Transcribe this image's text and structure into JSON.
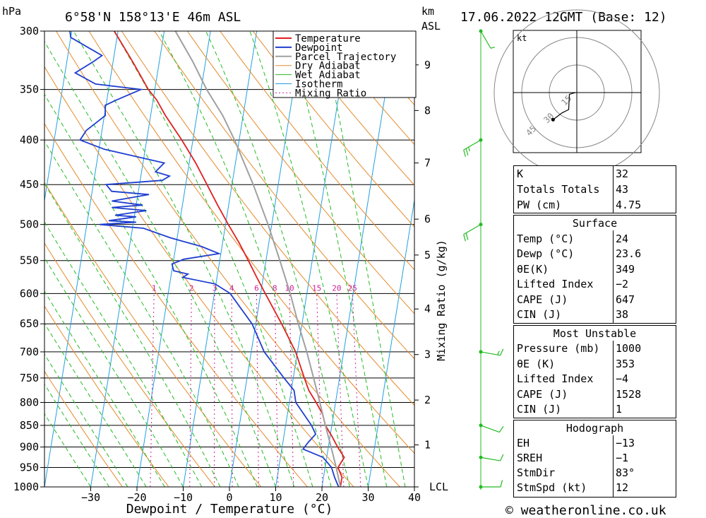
{
  "header": {
    "pressure_unit": "hPa",
    "location": "6°58'N  158°13'E  46m  ASL",
    "km_label": "km",
    "asl_label": "ASL",
    "datetime": "17.06.2022  12GMT  (Base: 12)"
  },
  "footer": {
    "copyright": "© weatheronline.co.uk"
  },
  "colors": {
    "temperature": "#e02020",
    "dewpoint": "#1f3fd0",
    "parcel": "#a0a0a0",
    "dry_adiabat": "#e58a2a",
    "wet_adiabat": "#22bb22",
    "isotherm": "#22a0e0",
    "mixing_ratio": "#cc2299",
    "wind": "#22bb22"
  },
  "chart_data": {
    "type": "line",
    "title": "6°58'N  158°13'E  46m  ASL",
    "xlabel": "Dewpoint / Temperature (°C)",
    "ylabel": "hPa",
    "right_label": "Mixing Ratio (g/kg)",
    "xlim": [
      -40,
      40
    ],
    "ylim": [
      1000,
      300
    ],
    "x_ticks": [
      -30,
      -20,
      -10,
      0,
      10,
      20,
      30,
      40
    ],
    "pressure_ticks": [
      300,
      350,
      400,
      450,
      500,
      550,
      600,
      650,
      700,
      750,
      800,
      850,
      900,
      950,
      1000
    ],
    "km_ticks": [
      {
        "label": "1",
        "p": 895
      },
      {
        "label": "2",
        "p": 795
      },
      {
        "label": "3",
        "p": 705
      },
      {
        "label": "4",
        "p": 625
      },
      {
        "label": "5",
        "p": 542
      },
      {
        "label": "6",
        "p": 493
      },
      {
        "label": "7",
        "p": 425
      },
      {
        "label": "8",
        "p": 370
      },
      {
        "label": "9",
        "p": 328
      },
      {
        "label": "LCL",
        "p": 1000
      }
    ],
    "mixing_ratio_labels": [
      1,
      2,
      3,
      4,
      6,
      8,
      10,
      15,
      20,
      25
    ],
    "grid": true,
    "legend_position": "top-right",
    "legend": [
      "Temperature",
      "Dewpoint",
      "Parcel Trajectory",
      "Dry Adiabat",
      "Wet Adiabat",
      "Isotherm",
      "Mixing Ratio"
    ],
    "series": [
      {
        "name": "Temperature",
        "points": [
          [
            1000,
            24.0
          ],
          [
            975,
            24.0
          ],
          [
            950,
            22.8
          ],
          [
            925,
            23.8
          ],
          [
            900,
            22.0
          ],
          [
            875,
            20.4
          ],
          [
            850,
            18.6
          ],
          [
            825,
            17.6
          ],
          [
            800,
            15.8
          ],
          [
            775,
            13.8
          ],
          [
            750,
            12.4
          ],
          [
            700,
            9.6
          ],
          [
            650,
            5.6
          ],
          [
            600,
            1.0
          ],
          [
            575,
            -1.4
          ],
          [
            550,
            -3.8
          ],
          [
            525,
            -6.4
          ],
          [
            500,
            -9.4
          ],
          [
            475,
            -12.4
          ],
          [
            450,
            -15.4
          ],
          [
            425,
            -18.6
          ],
          [
            400,
            -22.4
          ],
          [
            375,
            -26.8
          ],
          [
            360,
            -29.2
          ],
          [
            350,
            -31.4
          ],
          [
            325,
            -35.8
          ],
          [
            300,
            -40.8
          ]
        ]
      },
      {
        "name": "Dewpoint",
        "points": [
          [
            1000,
            23.6
          ],
          [
            975,
            22.4
          ],
          [
            950,
            21.4
          ],
          [
            925,
            19.2
          ],
          [
            905,
            14.6
          ],
          [
            890,
            15.4
          ],
          [
            870,
            16.8
          ],
          [
            850,
            15.6
          ],
          [
            800,
            11.4
          ],
          [
            775,
            10.6
          ],
          [
            750,
            8.0
          ],
          [
            700,
            2.8
          ],
          [
            650,
            -0.8
          ],
          [
            600,
            -6.6
          ],
          [
            585,
            -10.2
          ],
          [
            575,
            -17.4
          ],
          [
            570,
            -16.4
          ],
          [
            565,
            -19.6
          ],
          [
            555,
            -20.2
          ],
          [
            548,
            -17.8
          ],
          [
            540,
            -10.4
          ],
          [
            530,
            -14.4
          ],
          [
            518,
            -21.4
          ],
          [
            505,
            -27.6
          ],
          [
            500,
            -37.2
          ],
          [
            497,
            -29.4
          ],
          [
            495,
            -35.4
          ],
          [
            490,
            -29.6
          ],
          [
            488,
            -34.2
          ],
          [
            482,
            -27.6
          ],
          [
            478,
            -35.2
          ],
          [
            475,
            -28.6
          ],
          [
            470,
            -35.4
          ],
          [
            462,
            -27.6
          ],
          [
            458,
            -35.8
          ],
          [
            450,
            -37.2
          ],
          [
            445,
            -25.2
          ],
          [
            440,
            -23.8
          ],
          [
            435,
            -27.0
          ],
          [
            425,
            -25.4
          ],
          [
            410,
            -38.8
          ],
          [
            400,
            -44.4
          ],
          [
            390,
            -43.4
          ],
          [
            375,
            -39.8
          ],
          [
            365,
            -40.2
          ],
          [
            360,
            -38.0
          ],
          [
            350,
            -33.0
          ],
          [
            345,
            -43.0
          ],
          [
            335,
            -47.8
          ],
          [
            325,
            -44.2
          ],
          [
            320,
            -42.6
          ],
          [
            305,
            -50.0
          ],
          [
            300,
            -50.4
          ]
        ]
      },
      {
        "name": "Parcel Trajectory",
        "points": [
          [
            1000,
            24.0
          ],
          [
            950,
            22.4
          ],
          [
            900,
            20.6
          ],
          [
            850,
            18.6
          ],
          [
            800,
            16.6
          ],
          [
            750,
            14.4
          ],
          [
            700,
            12.0
          ],
          [
            650,
            9.2
          ],
          [
            600,
            6.4
          ],
          [
            550,
            3.0
          ],
          [
            500,
            -0.8
          ],
          [
            450,
            -5.4
          ],
          [
            400,
            -11.0
          ],
          [
            375,
            -14.4
          ],
          [
            350,
            -18.8
          ],
          [
            325,
            -22.8
          ],
          [
            300,
            -27.6
          ]
        ]
      }
    ],
    "wind_barbs": [
      {
        "p": 1000,
        "dir": 90,
        "kt": 10
      },
      {
        "p": 925,
        "dir": 100,
        "kt": 10
      },
      {
        "p": 850,
        "dir": 110,
        "kt": 10
      },
      {
        "p": 700,
        "dir": 100,
        "kt": 15
      },
      {
        "p": 500,
        "dir": 240,
        "kt": 20
      },
      {
        "p": 400,
        "dir": 240,
        "kt": 25
      },
      {
        "p": 300,
        "dir": 150,
        "kt": 5
      }
    ],
    "hodograph": {
      "unit_label": "kt",
      "ring_labels": [
        "15",
        "30",
        "45"
      ],
      "points_uv": [
        [
          -1,
          0
        ],
        [
          -3,
          -0.5
        ],
        [
          -5,
          -1
        ],
        [
          -5.5,
          -10
        ],
        [
          -10,
          -12
        ],
        [
          -16,
          -16
        ]
      ]
    }
  },
  "indices": {
    "general": [
      {
        "label": "K",
        "value": "32"
      },
      {
        "label": "Totals Totals",
        "value": "43"
      },
      {
        "label": "PW (cm)",
        "value": "4.75"
      }
    ],
    "surface": {
      "title": "Surface",
      "rows": [
        {
          "label": "Temp (°C)",
          "value": "24"
        },
        {
          "label": "Dewp (°C)",
          "value": "23.6"
        },
        {
          "label": "θE(K)",
          "value": "349"
        },
        {
          "label": "Lifted Index",
          "value": "−2"
        },
        {
          "label": "CAPE (J)",
          "value": "647"
        },
        {
          "label": "CIN (J)",
          "value": "38"
        }
      ]
    },
    "most_unstable": {
      "title": "Most Unstable",
      "rows": [
        {
          "label": "Pressure (mb)",
          "value": "1000"
        },
        {
          "label": "θE (K)",
          "value": "353"
        },
        {
          "label": "Lifted Index",
          "value": "−4"
        },
        {
          "label": "CAPE (J)",
          "value": "1528"
        },
        {
          "label": "CIN (J)",
          "value": "1"
        }
      ]
    },
    "hodograph": {
      "title": "Hodograph",
      "rows": [
        {
          "label": "EH",
          "value": "−13"
        },
        {
          "label": "SREH",
          "value": "−1"
        },
        {
          "label": "StmDir",
          "value": "83°"
        },
        {
          "label": "StmSpd (kt)",
          "value": "12"
        }
      ]
    }
  }
}
